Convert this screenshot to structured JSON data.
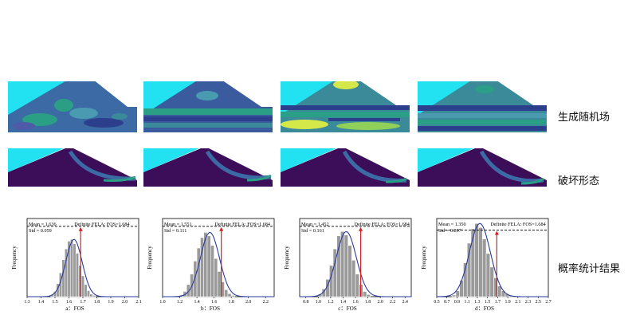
{
  "row_labels": {
    "random_field": "生成随机场",
    "failure_mode": "破坏形态",
    "statistics": "概率统计结果"
  },
  "colors": {
    "water": "#22e1f0",
    "field_dark": "#2c3f8c",
    "field_mid": "#3b8a9a",
    "field_teal": "#2a9f86",
    "field_yellow": "#d5e84a",
    "slope_purple": "#3c0e5a",
    "bar_fill": "#9a9a9a",
    "bar_edge": "#ffffff",
    "curve": "#2b3a9e",
    "fela_line": "#d81e1e"
  },
  "chart_data": [
    {
      "type": "bar",
      "panel": "a",
      "xlabel": "a：FOS",
      "ylabel": "Frequency",
      "xlim": [
        1.3,
        2.1
      ],
      "xticks": [
        "1.3",
        "1.4",
        "1.5",
        "1.6",
        "1.7",
        "1.8",
        "1.9",
        "2.0",
        "2.1"
      ],
      "mean_label": "Mean = 1.636",
      "std_label": "Std = 0.059",
      "mean": 1.636,
      "std": 0.059,
      "fela_label": "Definite FELA: FOS=1.684",
      "fela_fos": 1.684,
      "bin_start": 1.47,
      "bin_width": 0.02,
      "values": [
        5,
        12,
        30,
        55,
        85,
        110,
        128,
        132,
        122,
        100,
        72,
        48,
        28,
        14,
        6,
        3
      ],
      "ylim": [
        0,
        180
      ],
      "dashed_level": 162
    },
    {
      "type": "bar",
      "panel": "b",
      "xlabel": "b：FOS",
      "ylabel": "Frequency",
      "xlim": [
        1.0,
        2.3
      ],
      "xticks": [
        "1.0",
        "1.2",
        "1.4",
        "1.6",
        "1.8",
        "2.0",
        "2.2"
      ],
      "mean_label": "Mean = 1.551",
      "std_label": "Std = 0.111",
      "mean": 1.551,
      "std": 0.111,
      "fela_label": "Definite FELA: FOS=1.684",
      "fela_fos": 1.684,
      "bin_start": 1.2,
      "bin_width": 0.04,
      "values": [
        4,
        12,
        28,
        52,
        82,
        112,
        136,
        148,
        140,
        118,
        88,
        58,
        34,
        16,
        7,
        3
      ],
      "ylim": [
        0,
        180
      ],
      "dashed_level": 162
    },
    {
      "type": "bar",
      "panel": "c",
      "xlabel": "c：FOS",
      "ylabel": "Frequency",
      "xlim": [
        0.7,
        2.5
      ],
      "xticks": [
        "0.8",
        "1.0",
        "1.2",
        "1.4",
        "1.6",
        "1.8",
        "2.0",
        "2.2",
        "2.4"
      ],
      "mean_label": "Mean = 1.452",
      "std_label": "Std = 0.161",
      "mean": 1.452,
      "std": 0.161,
      "fela_label": "Definite FELA: FOS=1.684",
      "fela_fos": 1.684,
      "bin_start": 1.0,
      "bin_width": 0.06,
      "values": [
        6,
        18,
        40,
        72,
        110,
        140,
        150,
        142,
        118,
        84,
        52,
        28,
        12,
        5
      ],
      "ylim": [
        0,
        180
      ],
      "dashed_level": 162
    },
    {
      "type": "bar",
      "panel": "d",
      "xlabel": "d：FOS",
      "ylabel": "Frequency",
      "xlim": [
        0.5,
        2.7
      ],
      "xticks": [
        "0.5",
        "0.7",
        "0.9",
        "1.1",
        "1.3",
        "1.5",
        "1.7",
        "1.9",
        "2.1",
        "2.3",
        "2.5",
        "2.7"
      ],
      "mean_label": "Mean = 1.350",
      "std_label": "Std = 0.207",
      "mean": 1.35,
      "std": 0.207,
      "fela_label": "Definite FELA: FOS=1.684",
      "fela_fos": 1.684,
      "bin_start": 0.8,
      "bin_width": 0.075,
      "values": [
        4,
        14,
        40,
        82,
        130,
        165,
        178,
        168,
        140,
        105,
        72,
        46,
        26,
        14,
        7,
        3,
        1
      ],
      "ylim": [
        0,
        190
      ],
      "dashed_level": 162
    }
  ]
}
